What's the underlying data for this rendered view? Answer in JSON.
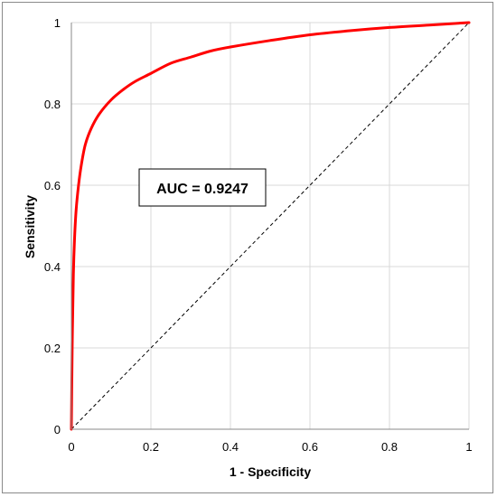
{
  "chart_data": {
    "type": "line",
    "xlabel": "1 - Specificity",
    "ylabel": "Sensitivity",
    "xlim": [
      0,
      1
    ],
    "ylim": [
      0,
      1
    ],
    "x_ticks": [
      "0",
      "0.2",
      "0.4",
      "0.6",
      "0.8",
      "1"
    ],
    "y_ticks": [
      "0",
      "0.2",
      "0.4",
      "0.6",
      "0.8",
      "1"
    ],
    "grid": true,
    "legend": "none",
    "annotation": "AUC = 0.9247",
    "series": [
      {
        "style": "solid",
        "color": "#ff0000",
        "points": [
          [
            0,
            0
          ],
          [
            0.002,
            0.2
          ],
          [
            0.005,
            0.38
          ],
          [
            0.008,
            0.47
          ],
          [
            0.012,
            0.54
          ],
          [
            0.018,
            0.6
          ],
          [
            0.025,
            0.65
          ],
          [
            0.035,
            0.7
          ],
          [
            0.05,
            0.74
          ],
          [
            0.07,
            0.775
          ],
          [
            0.1,
            0.81
          ],
          [
            0.13,
            0.835
          ],
          [
            0.16,
            0.855
          ],
          [
            0.2,
            0.875
          ],
          [
            0.25,
            0.9
          ],
          [
            0.3,
            0.915
          ],
          [
            0.35,
            0.93
          ],
          [
            0.4,
            0.94
          ],
          [
            0.5,
            0.956
          ],
          [
            0.6,
            0.97
          ],
          [
            0.7,
            0.98
          ],
          [
            0.8,
            0.988
          ],
          [
            0.9,
            0.994
          ],
          [
            1,
            1
          ]
        ]
      },
      {
        "style": "dashed",
        "color": "#000000",
        "points": [
          [
            0,
            0
          ],
          [
            1,
            1
          ]
        ]
      }
    ]
  }
}
